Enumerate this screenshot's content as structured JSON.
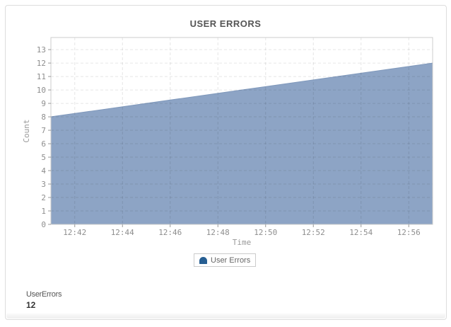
{
  "panel": {
    "title": "USER ERRORS"
  },
  "chart_data": {
    "type": "area",
    "title": "USER ERRORS",
    "xlabel": "Time",
    "ylabel": "Count",
    "x_range": [
      "12:41",
      "12:57"
    ],
    "x_ticks": [
      "12:42",
      "12:44",
      "12:46",
      "12:48",
      "12:50",
      "12:52",
      "12:54",
      "12:56"
    ],
    "y_ticks": [
      0,
      1,
      2,
      3,
      4,
      5,
      6,
      7,
      8,
      9,
      10,
      11,
      12,
      13
    ],
    "ylim": [
      0,
      13.9
    ],
    "grid": true,
    "legend_position": "bottom",
    "series": [
      {
        "name": "User Errors",
        "color": "#8da4c5",
        "points": [
          {
            "time": "12:41",
            "value": 8
          },
          {
            "time": "12:57",
            "value": 12
          }
        ]
      }
    ]
  },
  "legend": {
    "items": [
      {
        "label": "User Errors",
        "marker_color": "#265e92"
      }
    ]
  },
  "summary": {
    "label": "UserErrors",
    "value": "12"
  },
  "colors": {
    "area": "#8da4c5",
    "area_edge": "#7f98bb",
    "legend_marker": "#265e92",
    "grid": "rgba(0,0,0,0.10)",
    "axis_border": "#cccccc",
    "tick_text": "#8e8e8e",
    "title_text": "#555555"
  }
}
